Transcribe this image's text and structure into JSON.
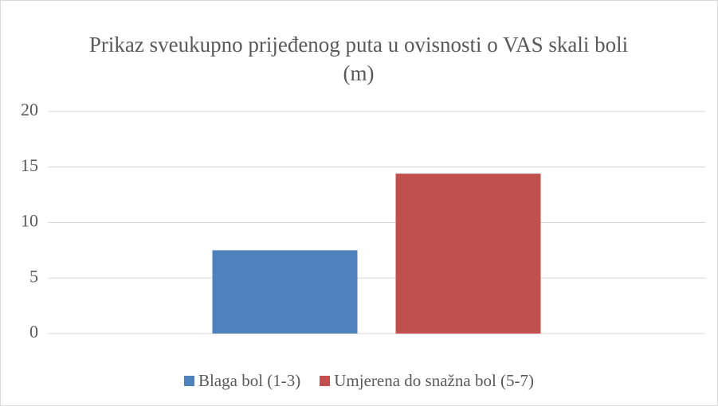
{
  "chart_data": {
    "type": "bar",
    "title": "Prikaz sveukupno prijeđenog puta u ovisnosti o VAS skali boli (m)",
    "categories": [
      null
    ],
    "series": [
      {
        "name": "Blaga bol (1-3)",
        "color": "#4f81bd",
        "values": [
          7.5
        ]
      },
      {
        "name": "Umjerena do snažna bol (5-7)",
        "color": "#c0504d",
        "values": [
          14.4
        ]
      }
    ],
    "ylim": [
      0,
      20
    ],
    "yticks": [
      0,
      5,
      10,
      15,
      20
    ],
    "grid": true,
    "legend": "bottom"
  }
}
